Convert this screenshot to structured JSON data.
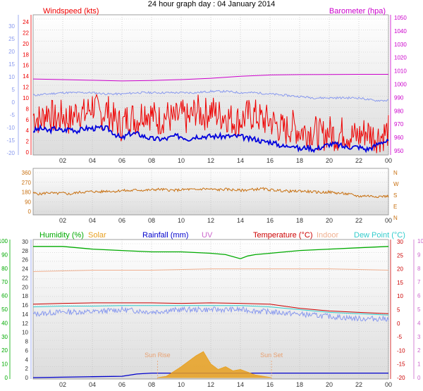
{
  "page_title": "24 hour graph day : 04 January 2014",
  "colors": {
    "windspeed": "#ee0000",
    "wind_avg": "#0000dd",
    "barometer": "#cc00cc",
    "direction": "#c87010",
    "humidity": "#00aa00",
    "solar": "#e8a020",
    "rainfall": "#0000cc",
    "uv": "#cc66cc",
    "temperature": "#cc0000",
    "indoor": "#f0b090",
    "dewpoint": "#33cccc",
    "temp_axis_left": "#8899ee",
    "sun_marker": "#e8a070"
  },
  "chart_data": [
    {
      "id": "wind_baro",
      "type": "line",
      "title": "",
      "legend": [
        "Windspeed (kts)",
        "Barometer (hpa)"
      ],
      "x_ticks": [
        "02",
        "04",
        "06",
        "08",
        "10",
        "12",
        "14",
        "16",
        "18",
        "20",
        "22",
        "00"
      ],
      "x_range": [
        0,
        24
      ],
      "y_left_label": "Windspeed (kts)",
      "y_left_ticks": [
        "24",
        "22",
        "20",
        "18",
        "16",
        "14",
        "12",
        "10",
        "8",
        "6",
        "4",
        "2",
        "0"
      ],
      "y_left_range": [
        0,
        25
      ],
      "y_right_label": "Barometer (hpa)",
      "y_right_ticks": [
        "1050",
        "1040",
        "1030",
        "1020",
        "1010",
        "1000",
        "990",
        "980",
        "970",
        "960",
        "950"
      ],
      "y_right_range": [
        946,
        1052
      ],
      "y_far_left_ticks": [
        "30",
        "25",
        "20",
        "15",
        "10",
        "5",
        "0",
        "-5",
        "-10",
        "-15",
        "-20"
      ],
      "y_far_left_range": [
        -22,
        32
      ],
      "grid": true,
      "series": [
        {
          "name": "Windspeed (kts)",
          "axis": "left",
          "color_key": "windspeed",
          "x": [
            0,
            0.5,
            1,
            1.5,
            2,
            2.5,
            3,
            3.5,
            4,
            4.5,
            5,
            5.5,
            6,
            6.5,
            7,
            7.5,
            8,
            8.5,
            9,
            9.5,
            10,
            10.5,
            11,
            11.5,
            12,
            12.5,
            13,
            13.5,
            14,
            14.5,
            15,
            15.5,
            16,
            16.5,
            17,
            17.5,
            18,
            18.5,
            19,
            19.5,
            20,
            20.5,
            21,
            21.5,
            22,
            22.5,
            23,
            23.5,
            24
          ],
          "y": [
            7,
            6,
            8,
            6,
            7,
            6,
            8,
            7,
            9,
            7,
            8,
            6,
            5,
            7,
            6,
            8,
            7,
            6,
            7,
            6,
            7,
            6,
            8,
            7,
            8,
            7,
            7,
            6,
            6,
            7,
            7,
            6,
            6,
            5,
            4,
            5,
            4,
            4,
            4,
            3,
            4,
            3,
            4,
            3,
            3,
            4,
            3,
            3,
            4
          ]
        },
        {
          "name": "Windspeed average",
          "axis": "left",
          "color_key": "wind_avg",
          "x": [
            0,
            0.5,
            1,
            1.5,
            2,
            2.5,
            3,
            3.5,
            4,
            4.5,
            5,
            5.5,
            6,
            6.5,
            7,
            7.5,
            8,
            8.5,
            9,
            9.5,
            10,
            10.5,
            11,
            11.5,
            12,
            12.5,
            13,
            13.5,
            14,
            14.5,
            15,
            15.5,
            16,
            16.5,
            17,
            17.5,
            18,
            18.5,
            19,
            19.5,
            20,
            20.5,
            21,
            21.5,
            22,
            22.5,
            23,
            23.5,
            24
          ],
          "y": [
            4,
            4.5,
            4,
            4.5,
            4,
            4.5,
            4,
            4.5,
            4.5,
            4.5,
            4.5,
            3.5,
            2.5,
            3.5,
            3.5,
            3,
            2.5,
            2.5,
            2.5,
            3,
            3,
            2.5,
            3,
            3,
            3,
            3,
            3,
            3,
            3,
            2.5,
            2.5,
            2,
            2,
            1.5,
            1,
            1.5,
            0.5,
            1,
            0.5,
            1,
            1.5,
            1.5,
            1,
            1,
            1,
            0.5,
            1,
            2,
            2
          ]
        },
        {
          "name": "Barometer (hpa)",
          "axis": "right",
          "color_key": "barometer",
          "x": [
            0,
            2,
            4,
            6,
            8,
            10,
            12,
            14,
            16,
            18,
            20,
            22,
            24
          ],
          "y": [
            1003.5,
            1003,
            1002.5,
            1002,
            1002.3,
            1003,
            1004,
            1005.5,
            1006.5,
            1006.8,
            1006.9,
            1007,
            1007
          ]
        },
        {
          "name": "Outdoor temperature",
          "axis": "far_left",
          "color_key": "temp_axis_left",
          "x": [
            0,
            1,
            2,
            3,
            4,
            5,
            6,
            7,
            8,
            9,
            10,
            11,
            12,
            13,
            14,
            15,
            16,
            17,
            18,
            19,
            20,
            21,
            22,
            23,
            24
          ],
          "y": [
            1,
            1.5,
            2,
            2,
            2,
            1.5,
            1.5,
            2,
            2,
            2,
            2,
            2,
            2.5,
            2.5,
            2,
            2,
            1.5,
            1,
            0.5,
            0,
            0,
            0,
            0,
            -1,
            -1
          ]
        }
      ]
    },
    {
      "id": "direction",
      "type": "scatter",
      "title": "",
      "x_ticks": [
        "02",
        "04",
        "06",
        "08",
        "10",
        "12",
        "14",
        "16",
        "18",
        "20",
        "22",
        "00"
      ],
      "x_range": [
        0,
        24
      ],
      "y_left_ticks": [
        "360",
        "270",
        "180",
        "90",
        "0"
      ],
      "y_range": [
        0,
        360
      ],
      "y_right_ticks": [
        "N",
        "W",
        "S",
        "E",
        "N"
      ],
      "grid": true,
      "series": [
        {
          "name": "Wind direction",
          "color_key": "direction",
          "x": [
            0,
            0.5,
            1,
            1.5,
            2,
            2.5,
            3,
            3.5,
            4,
            4.5,
            5,
            5.5,
            6,
            6.5,
            7,
            7.5,
            8,
            8.5,
            9,
            9.5,
            10,
            10.5,
            11,
            11.5,
            12,
            12.5,
            13,
            13.5,
            14,
            14.5,
            15,
            15.5,
            16,
            16.5,
            17,
            17.5,
            18,
            18.5,
            19,
            19.5,
            20,
            20.5,
            21,
            21.5,
            22,
            22.5,
            23,
            23.5,
            24
          ],
          "y": [
            170,
            160,
            175,
            165,
            170,
            160,
            175,
            180,
            185,
            180,
            190,
            185,
            195,
            190,
            200,
            195,
            200,
            205,
            200,
            195,
            200,
            205,
            200,
            210,
            205,
            200,
            205,
            200,
            195,
            200,
            205,
            210,
            200,
            195,
            190,
            185,
            190,
            185,
            180,
            175,
            180,
            170,
            165,
            155,
            140,
            145,
            140,
            140,
            140
          ]
        }
      ]
    },
    {
      "id": "climate",
      "type": "line",
      "title": "",
      "legend": [
        "Humidity (%)",
        "Solar",
        "Rainfall (mm)",
        "UV",
        "Temperature (°C)",
        "Indoor",
        "Dew Point (°C)"
      ],
      "x_ticks": [
        "02",
        "04",
        "06",
        "08",
        "10",
        "12",
        "14",
        "16",
        "18",
        "20",
        "22",
        "00"
      ],
      "x_range": [
        0,
        24
      ],
      "y_humidity_ticks": [
        "100",
        "90",
        "80",
        "70",
        "60",
        "50",
        "40",
        "30",
        "20",
        "10",
        "0"
      ],
      "y_humidity_range": [
        0,
        100
      ],
      "y_temp_left_ticks": [
        "30",
        "28",
        "26",
        "24",
        "22",
        "20",
        "18",
        "16",
        "14",
        "12",
        "10",
        "8",
        "6",
        "4",
        "2",
        "0"
      ],
      "y_temp_left_range": [
        -1,
        31
      ],
      "y_temp_right_ticks": [
        "30",
        "25",
        "20",
        "15",
        "10",
        "5",
        "0",
        "-5",
        "-10",
        "-15",
        "-20"
      ],
      "y_temp_right_range": [
        -21,
        31
      ],
      "y_uv_ticks": [
        "10",
        "9",
        "8",
        "7",
        "6",
        "5",
        "4",
        "3",
        "2",
        "1",
        "0"
      ],
      "y_uv_range": [
        0,
        10
      ],
      "annotations": [
        "Sun Rise",
        "Sun Set"
      ],
      "sun_rise_hour": 8.4,
      "sun_set_hour": 16.1,
      "grid": true,
      "series": [
        {
          "name": "Humidity (%)",
          "axis": "humidity",
          "color_key": "humidity",
          "x": [
            0,
            2,
            4,
            6,
            8,
            10,
            12,
            13,
            14,
            14.5,
            15,
            16,
            18,
            20,
            22,
            24
          ],
          "y": [
            96,
            96,
            94,
            93,
            92,
            92,
            91,
            90,
            87,
            89,
            90,
            91,
            93,
            94,
            95,
            96
          ]
        },
        {
          "name": "Indoor",
          "axis": "temp_right",
          "color_key": "indoor",
          "x": [
            0,
            4,
            8,
            12,
            16,
            20,
            24
          ],
          "y": [
            19,
            19.5,
            19.5,
            20,
            20,
            20,
            19.5
          ]
        },
        {
          "name": "Temperature (°C)",
          "axis": "temp_right",
          "color_key": "temperature",
          "x": [
            0,
            2,
            4,
            6,
            8,
            10,
            12,
            14,
            16,
            18,
            20,
            22,
            24
          ],
          "y": [
            7,
            7.3,
            7.5,
            7.5,
            7.5,
            7.3,
            7.5,
            7.3,
            7,
            5.5,
            4.5,
            4,
            3.5
          ]
        },
        {
          "name": "Dew Point (°C)",
          "axis": "temp_right",
          "color_key": "dewpoint",
          "x": [
            0,
            2,
            4,
            6,
            8,
            10,
            12,
            14,
            16,
            18,
            20,
            22,
            24
          ],
          "y": [
            6,
            6.3,
            6.3,
            6.5,
            6.5,
            6.5,
            6.5,
            6.5,
            6,
            5,
            4,
            3.5,
            3
          ]
        },
        {
          "name": "Outdoor temperature",
          "axis": "temp_left",
          "color_key": "temp_axis_left",
          "x": [
            0,
            2,
            4,
            6,
            8,
            10,
            12,
            14,
            16,
            18,
            20,
            22,
            24
          ],
          "y": [
            14,
            14.5,
            14.5,
            15,
            14.5,
            15,
            15,
            15,
            14.5,
            14,
            13.5,
            13,
            13
          ]
        },
        {
          "name": "Rainfall (mm)",
          "axis": "temp_left",
          "color_key": "rainfall",
          "x": [
            0,
            4,
            6,
            7,
            8,
            10,
            12,
            14,
            16,
            18,
            20,
            22,
            24
          ],
          "y": [
            0,
            0.2,
            0.3,
            0.8,
            1,
            1,
            1,
            1,
            1,
            1,
            1,
            1,
            1
          ]
        },
        {
          "name": "Solar",
          "axis": "uv",
          "color_key": "solar",
          "kind": "area",
          "x": [
            8.4,
            9,
            10,
            10.5,
            11,
            11.5,
            12,
            12.5,
            13,
            13.5,
            14,
            15,
            16.1
          ],
          "y": [
            0,
            0.1,
            0.8,
            1.2,
            1.6,
            1.9,
            1.0,
            0.6,
            0.8,
            0.5,
            0.6,
            0.2,
            0
          ]
        }
      ]
    }
  ]
}
